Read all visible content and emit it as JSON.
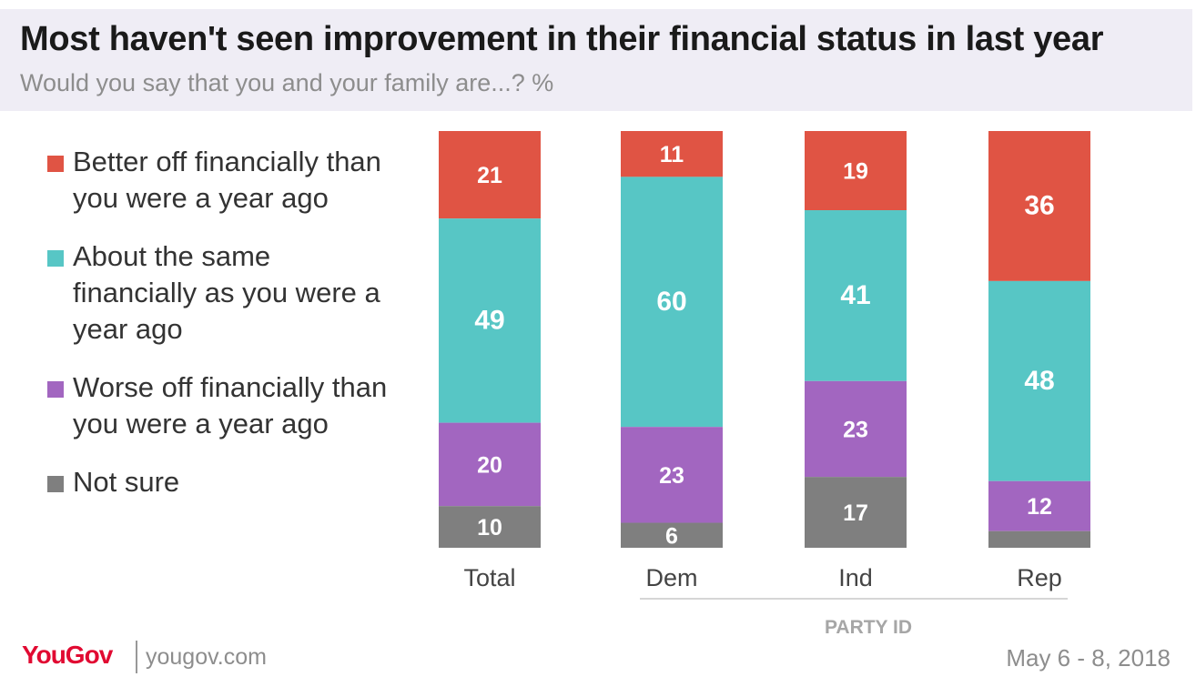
{
  "header": {
    "title": "Most haven't seen improvement in their financial status in last year",
    "subtitle": "Would you say that you and your family are...? %"
  },
  "legend": [
    {
      "label": "Better off financially than you were a year ago",
      "color": "#e05444"
    },
    {
      "label": "About the same financially as you were a year ago",
      "color": "#57c6c5"
    },
    {
      "label": "Worse off financially than you were a year ago",
      "color": "#a266c0"
    },
    {
      "label": "Not sure",
      "color": "#7f7f7f"
    }
  ],
  "chart_data": {
    "type": "bar",
    "stacked": true,
    "categories": [
      "Total",
      "Dem",
      "Ind",
      "Rep"
    ],
    "series": [
      {
        "name": "Better off financially than you were a year ago",
        "values": [
          21,
          11,
          19,
          36
        ],
        "labels": [
          "21",
          "11",
          "19",
          "36"
        ]
      },
      {
        "name": "About the same financially as you were a year ago",
        "values": [
          49,
          60,
          41,
          48
        ],
        "labels": [
          "49",
          "60",
          "41",
          "48"
        ]
      },
      {
        "name": "Worse off financially than you were a year ago",
        "values": [
          20,
          23,
          23,
          12
        ],
        "labels": [
          "20",
          "23",
          "23",
          "12"
        ]
      },
      {
        "name": "Not sure",
        "values": [
          10,
          6,
          17,
          4
        ],
        "labels": [
          "10",
          "6",
          "17",
          ""
        ]
      }
    ],
    "group_label": "PARTY ID",
    "ylim": [
      0,
      100
    ]
  },
  "footer": {
    "brand": "YouGov",
    "url": "yougov.com",
    "date": "May 6 - 8, 2018"
  }
}
